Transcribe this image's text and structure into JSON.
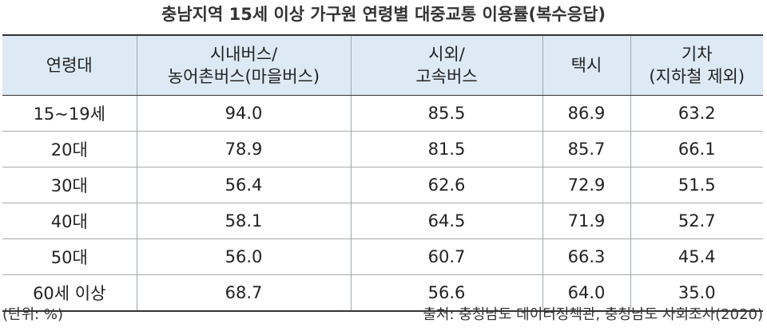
{
  "title": "충남지역 15세 이상 가구원 연령별 대중교통 이용률(복수응답)",
  "table": {
    "header": [
      [
        "연령대"
      ],
      [
        "시내버스/",
        "농어촌버스(마을버스)"
      ],
      [
        "시외/",
        "고속버스"
      ],
      [
        "택시"
      ],
      [
        "기차",
        "(지하철 제외)"
      ]
    ],
    "rows": [
      [
        "15~19세",
        "94.0",
        "85.5",
        "86.9",
        "63.2"
      ],
      [
        "20대",
        "78.9",
        "81.5",
        "85.7",
        "66.1"
      ],
      [
        "30대",
        "56.4",
        "62.6",
        "72.9",
        "51.5"
      ],
      [
        "40대",
        "58.1",
        "64.5",
        "71.9",
        "52.7"
      ],
      [
        "50대",
        "56.0",
        "60.7",
        "66.3",
        "45.4"
      ],
      [
        "60세 이상",
        "68.7",
        "56.6",
        "64.0",
        "35.0"
      ]
    ]
  },
  "footer": {
    "unit": "(단위: %)",
    "source": "출처: 충청남도 데이터정책관, 충청남도 사회조사(2020)"
  }
}
